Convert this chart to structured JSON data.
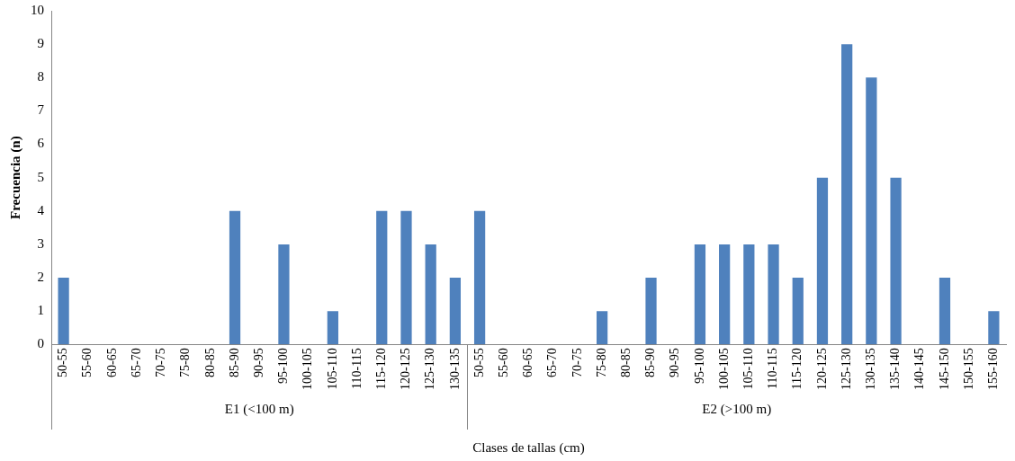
{
  "chart_data": {
    "type": "bar",
    "xlabel": "Clases de tallas (cm)",
    "ylabel": "Frecuencia (n)",
    "categories": [
      "50-55",
      "55-60",
      "60-65",
      "65-70",
      "70-75",
      "75-80",
      "80-85",
      "85-90",
      "90-95",
      "95-100",
      "100-105",
      "105-110",
      "110-115",
      "115-120",
      "120-125",
      "125-130",
      "130-135",
      "50-55",
      "55-60",
      "60-65",
      "65-70",
      "70-75",
      "75-80",
      "80-85",
      "85-90",
      "90-95",
      "95-100",
      "100-105",
      "105-110",
      "110-115",
      "115-120",
      "120-125",
      "125-130",
      "130-135",
      "135-140",
      "140-145",
      "145-150",
      "150-155",
      "155-160"
    ],
    "values": [
      2,
      0,
      0,
      0,
      0,
      0,
      0,
      4,
      0,
      3,
      0,
      1,
      0,
      4,
      4,
      3,
      2,
      4,
      0,
      0,
      0,
      0,
      1,
      0,
      2,
      0,
      3,
      3,
      3,
      3,
      2,
      5,
      9,
      8,
      5,
      0,
      2,
      0,
      1
    ],
    "color": "#4f81bd",
    "ylim": [
      0,
      10
    ],
    "yticks": [
      0,
      1,
      2,
      3,
      4,
      5,
      6,
      7,
      8,
      9,
      10
    ],
    "grid": false,
    "legend": false,
    "annotations": [
      "E1 (<100 m)",
      "E2 (>100 m)"
    ]
  }
}
